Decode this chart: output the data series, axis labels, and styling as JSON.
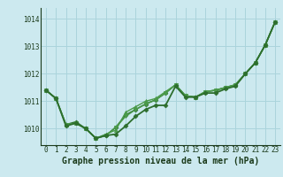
{
  "title": "Graphe pression niveau de la mer (hPa)",
  "bg_color": "#cce9ef",
  "grid_color": "#aad4dc",
  "x_labels": [
    "0",
    "1",
    "2",
    "3",
    "4",
    "5",
    "6",
    "7",
    "8",
    "9",
    "10",
    "11",
    "12",
    "13",
    "14",
    "15",
    "16",
    "17",
    "18",
    "19",
    "20",
    "21",
    "22",
    "23"
  ],
  "ylim": [
    1009.4,
    1014.4
  ],
  "yticks": [
    1010,
    1011,
    1012,
    1013,
    1014
  ],
  "series": [
    {
      "y": [
        1011.4,
        1011.1,
        1010.1,
        1010.2,
        1010.0,
        1009.65,
        1009.75,
        1009.8,
        1010.1,
        1010.45,
        1010.7,
        1010.85,
        1010.85,
        1011.55,
        1011.15,
        1011.15,
        1011.3,
        1011.3,
        1011.45,
        1011.55,
        1012.0,
        1012.4,
        1013.05,
        1013.9
      ],
      "color": "#2d6e2d",
      "lw": 1.3,
      "marker": "D",
      "ms": 2.5,
      "zorder": 3
    },
    {
      "y": [
        1011.4,
        1011.1,
        1010.15,
        1010.25,
        1010.0,
        1009.65,
        1009.75,
        1010.05,
        1010.5,
        1010.7,
        1010.9,
        1011.05,
        1011.3,
        1011.6,
        1011.2,
        1011.15,
        1011.35,
        1011.4,
        1011.5,
        1011.6,
        1012.0,
        1012.4,
        1013.05,
        1013.9
      ],
      "color": "#2d6e2d",
      "lw": 1.1,
      "marker": "D",
      "ms": 2.5,
      "zorder": 2
    },
    {
      "y": [
        1011.4,
        1011.1,
        1010.15,
        1010.2,
        1010.0,
        1009.65,
        1009.8,
        1009.95,
        1010.6,
        1010.8,
        1011.0,
        1011.1,
        1011.35,
        1011.6,
        1011.2,
        1011.15,
        1011.35,
        1011.4,
        1011.5,
        1011.6,
        1012.0,
        1012.4,
        1013.05,
        1013.9
      ],
      "color": "#4a9a4a",
      "lw": 1.0,
      "marker": "^",
      "ms": 3.0,
      "zorder": 2
    },
    {
      "y": [
        1011.4,
        1011.1,
        1010.15,
        1010.2,
        1010.0,
        1009.65,
        1009.75,
        1010.05,
        1010.45,
        1010.7,
        1010.9,
        1011.05,
        1011.3,
        1011.6,
        1011.2,
        1011.15,
        1011.35,
        1011.4,
        1011.5,
        1011.6,
        1012.0,
        1012.4,
        1013.05,
        1013.9
      ],
      "color": "#4a9a4a",
      "lw": 1.0,
      "marker": "v",
      "ms": 3.0,
      "zorder": 2
    }
  ],
  "tick_fontsize": 5.5,
  "label_fontsize": 7.0
}
